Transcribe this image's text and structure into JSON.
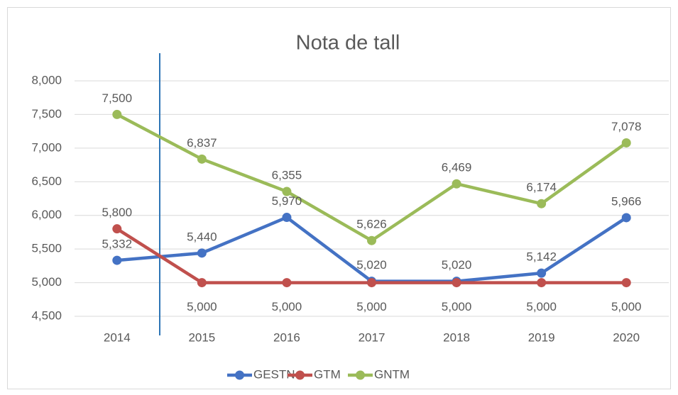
{
  "chart_data": {
    "type": "line",
    "title": "Nota de tall",
    "categories": [
      "2014",
      "2015",
      "2016",
      "2017",
      "2018",
      "2019",
      "2020"
    ],
    "series": [
      {
        "name": "GESTN",
        "color": "#4472c4",
        "values": [
          5.332,
          5.44,
          5.97,
          5.02,
          5.02,
          5.142,
          5.966
        ],
        "value_labels": [
          "5,332",
          "5,440",
          "5,970",
          "5,020",
          "5,020",
          "5,142",
          "5,966"
        ]
      },
      {
        "name": "GTM",
        "color": "#c0504d",
        "values": [
          5.8,
          5,
          5,
          5,
          5,
          5,
          5
        ],
        "value_labels": [
          "5,800",
          "5,000",
          "5,000",
          "5,000",
          "5,000",
          "5,000",
          "5,000"
        ]
      },
      {
        "name": "GNTM",
        "color": "#9bbb59",
        "values": [
          7.5,
          6.837,
          6.355,
          5.626,
          6.469,
          6.174,
          7.078
        ],
        "value_labels": [
          "7,500",
          "6,837",
          "6,355",
          "5,626",
          "6,469",
          "6,174",
          "7,078"
        ]
      }
    ],
    "ylim": [
      4.5,
      8
    ],
    "yticks": [
      {
        "value": 4.5,
        "label": "4,500"
      },
      {
        "value": 5,
        "label": "5,000"
      },
      {
        "value": 5.5,
        "label": "5,500"
      },
      {
        "value": 6,
        "label": "6,000"
      },
      {
        "value": 6.5,
        "label": "6,500"
      },
      {
        "value": 7,
        "label": "7,000"
      },
      {
        "value": 7.5,
        "label": "7,500"
      },
      {
        "value": 8,
        "label": "8,000"
      }
    ],
    "grid": true,
    "legend": "bottom"
  }
}
